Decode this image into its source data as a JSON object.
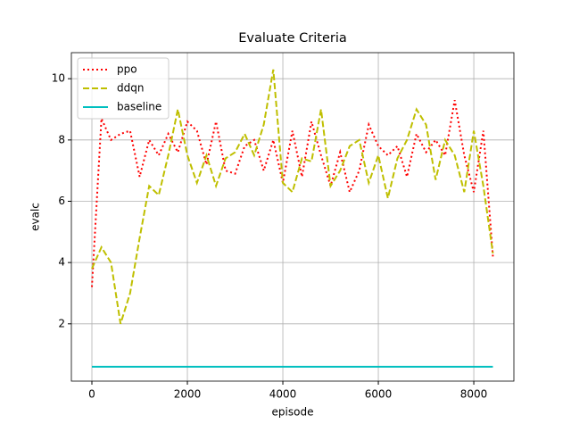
{
  "chart_data": {
    "type": "line",
    "title": "Evaluate Criteria",
    "x_label": "episode",
    "y_label": "evalc",
    "x": [
      0,
      200,
      400,
      600,
      800,
      1000,
      1200,
      1400,
      1600,
      1800,
      2000,
      2200,
      2400,
      2600,
      2800,
      3000,
      3200,
      3400,
      3600,
      3800,
      4000,
      4200,
      4400,
      4600,
      4800,
      5000,
      5200,
      5400,
      5600,
      5800,
      6000,
      6200,
      6400,
      6600,
      6800,
      7000,
      7200,
      7400,
      7600,
      7800,
      8000,
      8200,
      8400
    ],
    "series": [
      {
        "name": "ppo",
        "color": "#ff0000",
        "linestyle": "dotted",
        "values": [
          3.2,
          8.7,
          8.0,
          8.2,
          8.3,
          6.8,
          8.0,
          7.5,
          8.2,
          7.6,
          8.6,
          8.3,
          7.2,
          8.6,
          7.0,
          6.9,
          7.8,
          8.0,
          7.0,
          8.0,
          6.6,
          8.3,
          6.8,
          8.6,
          7.5,
          6.5,
          7.6,
          6.3,
          7.0,
          8.5,
          7.8,
          7.5,
          7.8,
          6.8,
          8.2,
          7.6,
          8.0,
          7.5,
          9.3,
          7.5,
          6.3,
          8.3,
          4.2
        ]
      },
      {
        "name": "ddqn",
        "color": "#bfbf00",
        "linestyle": "dashed",
        "values": [
          3.8,
          4.5,
          4.0,
          2.0,
          3.0,
          4.8,
          6.5,
          6.2,
          7.5,
          9.0,
          7.5,
          6.6,
          7.5,
          6.5,
          7.4,
          7.6,
          8.2,
          7.5,
          8.5,
          10.3,
          6.6,
          6.3,
          7.4,
          7.3,
          9.0,
          6.5,
          7.0,
          7.8,
          8.0,
          6.6,
          7.5,
          6.1,
          7.4,
          8.0,
          9.0,
          8.5,
          6.7,
          8.0,
          7.5,
          6.3,
          8.3,
          6.5,
          4.3
        ]
      },
      {
        "name": "baseline",
        "color": "#00bfbf",
        "linestyle": "solid",
        "values": [
          0.6,
          0.6,
          0.6,
          0.6,
          0.6,
          0.6,
          0.6,
          0.6,
          0.6,
          0.6,
          0.6,
          0.6,
          0.6,
          0.6,
          0.6,
          0.6,
          0.6,
          0.6,
          0.6,
          0.6,
          0.6,
          0.6,
          0.6,
          0.6,
          0.6,
          0.6,
          0.6,
          0.6,
          0.6,
          0.6,
          0.6,
          0.6,
          0.6,
          0.6,
          0.6,
          0.6,
          0.6,
          0.6,
          0.6,
          0.6,
          0.6,
          0.6,
          0.6
        ]
      }
    ],
    "xlim": [
      -430,
      8840
    ],
    "ylim": [
      0.13,
      10.85
    ],
    "xticks": [
      0,
      2000,
      4000,
      6000,
      8000
    ],
    "yticks": [
      2,
      4,
      6,
      8,
      10
    ],
    "grid": true,
    "legend": "upper-left"
  }
}
